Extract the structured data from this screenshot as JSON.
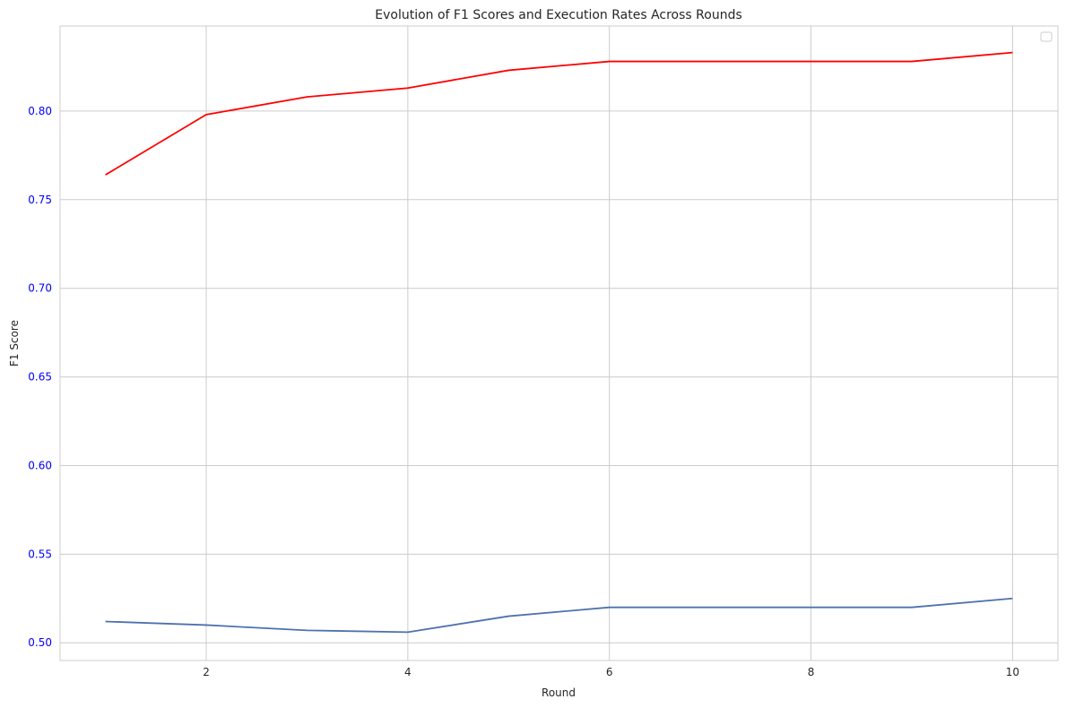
{
  "chart_data": {
    "type": "line",
    "title": "Evolution of F1 Scores and Execution Rates Across Rounds",
    "xlabel": "Round",
    "ylabel": "F1 Score",
    "xlim": [
      0.55,
      10.45
    ],
    "ylim": [
      0.49,
      0.848
    ],
    "x_ticks": [
      2,
      4,
      6,
      8,
      10
    ],
    "y_ticks": [
      0.5,
      0.55,
      0.6,
      0.65,
      0.7,
      0.75,
      0.8
    ],
    "grid": true,
    "legend": "top-right (empty)",
    "x": [
      1,
      2,
      3,
      4,
      5,
      6,
      7,
      8,
      9,
      10
    ],
    "series": [
      {
        "color": "#ff0000",
        "values": [
          0.764,
          0.798,
          0.808,
          0.813,
          0.823,
          0.828,
          0.828,
          0.828,
          0.828,
          0.833
        ]
      },
      {
        "color": "#4c72b0",
        "values": [
          0.512,
          0.51,
          0.507,
          0.506,
          0.515,
          0.52,
          0.52,
          0.52,
          0.52,
          0.525
        ]
      }
    ],
    "colors": {
      "ylabel": "#0000ff",
      "y_ticks": "#0000ff",
      "grid": "#cccccc",
      "spine": "#cccccc"
    }
  }
}
